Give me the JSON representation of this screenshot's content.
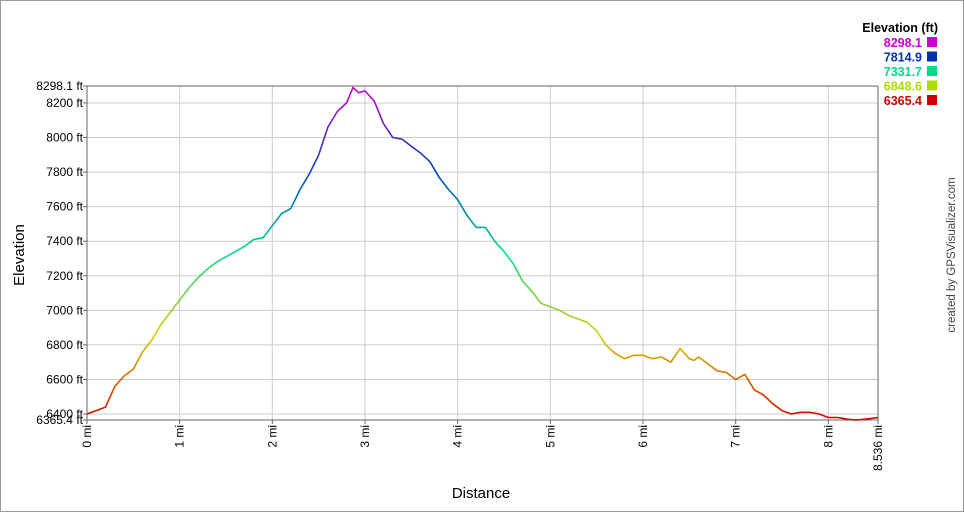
{
  "chart_data": {
    "type": "line",
    "xlabel": "Distance",
    "ylabel": "Elevation",
    "xlim": [
      0,
      8.536
    ],
    "ylim": [
      6365.4,
      8298.1
    ],
    "x_ticks": [
      "0 mi",
      "1 mi",
      "2 mi",
      "3 mi",
      "4 mi",
      "5 mi",
      "6 mi",
      "7 mi",
      "8 mi",
      "8.536 mi"
    ],
    "y_ticks": [
      "8298.1 ft",
      "8200 ft",
      "8000 ft",
      "7800 ft",
      "7600 ft",
      "7400 ft",
      "7200 ft",
      "7000 ft",
      "6800 ft",
      "6600 ft",
      "6400 ft",
      "6365.4 ft"
    ],
    "grid": true,
    "legend": {
      "title": "Elevation (ft)",
      "placement": "top-right",
      "entries": [
        {
          "label": "8298.1",
          "color": "#cc00cc"
        },
        {
          "label": "7814.9",
          "color": "#0033aa"
        },
        {
          "label": "7331.7",
          "color": "#00dd88"
        },
        {
          "label": "6848.6",
          "color": "#aadd00"
        },
        {
          "label": "6365.4",
          "color": "#cc0000"
        }
      ]
    },
    "series": [
      {
        "x": [
          0,
          0.1,
          0.2,
          0.3,
          0.4,
          0.5,
          0.6,
          0.7,
          0.8,
          0.9,
          1.0,
          1.1,
          1.2,
          1.3,
          1.4,
          1.5,
          1.6,
          1.7,
          1.8,
          1.9,
          2.0,
          2.1,
          2.2,
          2.3,
          2.4,
          2.5,
          2.6,
          2.7,
          2.8,
          2.87,
          2.93,
          3.0,
          3.1,
          3.2,
          3.3,
          3.4,
          3.5,
          3.6,
          3.7,
          3.8,
          3.9,
          4.0,
          4.1,
          4.2,
          4.3,
          4.4,
          4.5,
          4.6,
          4.7,
          4.8,
          4.9,
          5.0,
          5.1,
          5.2,
          5.3,
          5.4,
          5.5,
          5.6,
          5.7,
          5.8,
          5.9,
          6.0,
          6.1,
          6.2,
          6.3,
          6.4,
          6.5,
          6.55,
          6.6,
          6.7,
          6.8,
          6.9,
          7.0,
          7.1,
          7.2,
          7.3,
          7.4,
          7.5,
          7.6,
          7.7,
          7.8,
          7.9,
          8.0,
          8.1,
          8.2,
          8.3,
          8.4,
          8.536
        ],
        "y": [
          6400,
          6420,
          6440,
          6560,
          6620,
          6660,
          6760,
          6830,
          6920,
          6990,
          7060,
          7130,
          7190,
          7240,
          7280,
          7310,
          7340,
          7370,
          7410,
          7420,
          7490,
          7560,
          7590,
          7700,
          7790,
          7900,
          8060,
          8150,
          8200,
          8290,
          8260,
          8270,
          8210,
          8080,
          8000,
          7990,
          7950,
          7910,
          7860,
          7770,
          7700,
          7640,
          7550,
          7480,
          7480,
          7400,
          7340,
          7270,
          7170,
          7110,
          7040,
          7020,
          7000,
          6970,
          6950,
          6930,
          6880,
          6800,
          6750,
          6720,
          6740,
          6740,
          6720,
          6730,
          6700,
          6780,
          6720,
          6710,
          6730,
          6690,
          6650,
          6640,
          6600,
          6630,
          6540,
          6510,
          6460,
          6420,
          6400,
          6410,
          6410,
          6400,
          6380,
          6380,
          6370,
          6365.4,
          6370,
          6380
        ]
      }
    ]
  },
  "credit": "created by GPSVisualizer.com"
}
